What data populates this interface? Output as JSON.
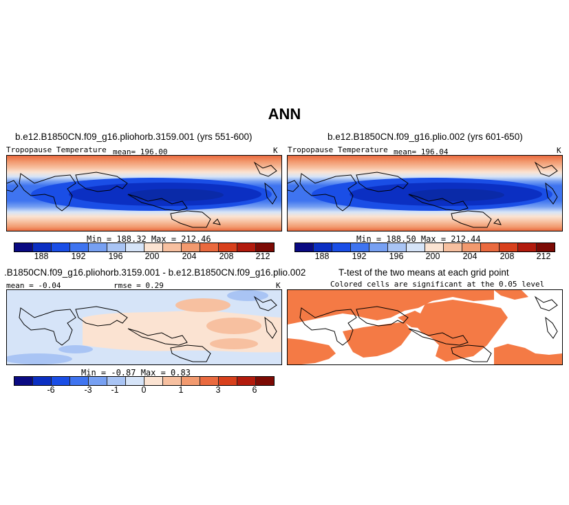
{
  "title": "ANN",
  "panels": [
    {
      "case_title": "b.e12.B1850CN.f09_g16.pliohorb.3159.001 (yrs 551-600)",
      "variable": "Tropopause Temperature",
      "mean_label": "mean= 196.00",
      "units": "K",
      "minmax": "Min = 188.32 Max = 212.46",
      "colorbar_ticks": [
        "188",
        "192",
        "196",
        "200",
        "204",
        "208",
        "212"
      ]
    },
    {
      "case_title": "b.e12.B1850CN.f09_g16.plio.002 (yrs 601-650)",
      "variable": "Tropopause Temperature",
      "mean_label": "mean= 196.04",
      "units": "K",
      "minmax": "Min = 188.50 Max = 212.44",
      "colorbar_ticks": [
        "188",
        "192",
        "196",
        "200",
        "204",
        "208",
        "212"
      ]
    },
    {
      "case_title": ".B1850CN.f09_g16.pliohorb.3159.001 - b.e12.B1850CN.f09_g16.plio.002",
      "mean_label": "mean = -0.04",
      "rmse_label": "rmse = 0.29",
      "units": "K",
      "minmax": "Min = -0.87 Max = 0.83",
      "colorbar_ticks": [
        "-6",
        "-3",
        "-1",
        "0",
        "1",
        "3",
        "6"
      ]
    },
    {
      "case_title": "T-test of the two means at each grid point",
      "subtitle": "Colored cells are significant at the 0.05 level"
    }
  ],
  "colors": {
    "colorbar": [
      "#0a0a82",
      "#0b2fc2",
      "#1a4ee6",
      "#3f74f0",
      "#77a0f2",
      "#a9c4f4",
      "#d6e4f8",
      "#fbe3d2",
      "#f7c0a0",
      "#f29a6f",
      "#ea6a3f",
      "#d8401c",
      "#b21a0c",
      "#7c0a04"
    ],
    "significant": "#f47a45"
  }
}
